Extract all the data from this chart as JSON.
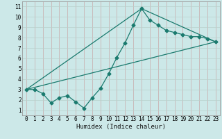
{
  "title": "",
  "xlabel": "Humidex (Indice chaleur)",
  "xlim": [
    -0.5,
    23.5
  ],
  "ylim": [
    0.5,
    11.5
  ],
  "xticks": [
    0,
    1,
    2,
    3,
    4,
    5,
    6,
    7,
    8,
    9,
    10,
    11,
    12,
    13,
    14,
    15,
    16,
    17,
    18,
    19,
    20,
    21,
    22,
    23
  ],
  "yticks": [
    1,
    2,
    3,
    4,
    5,
    6,
    7,
    8,
    9,
    10,
    11
  ],
  "bg_color": "#cce8e8",
  "grid_color_major": "#b8d4d4",
  "grid_color_minor": "#d4aaaa",
  "line_color": "#1a7a6e",
  "line1_x": [
    0,
    1,
    2,
    3,
    4,
    5,
    6,
    7,
    8,
    9,
    10,
    11,
    12,
    13,
    14,
    15,
    16,
    17,
    18,
    19,
    20,
    21,
    22,
    23
  ],
  "line1_y": [
    3.0,
    3.0,
    2.6,
    1.7,
    2.2,
    2.4,
    1.8,
    1.2,
    2.2,
    3.1,
    4.5,
    6.1,
    7.5,
    9.2,
    10.8,
    9.7,
    9.2,
    8.7,
    8.5,
    8.3,
    8.1,
    8.1,
    7.9,
    7.6
  ],
  "line2_x": [
    0,
    23
  ],
  "line2_y": [
    3.0,
    7.6
  ],
  "line3_x": [
    0,
    14,
    23
  ],
  "line3_y": [
    3.0,
    10.8,
    7.6
  ],
  "tick_fontsize": 5.5,
  "xlabel_fontsize": 6.5
}
